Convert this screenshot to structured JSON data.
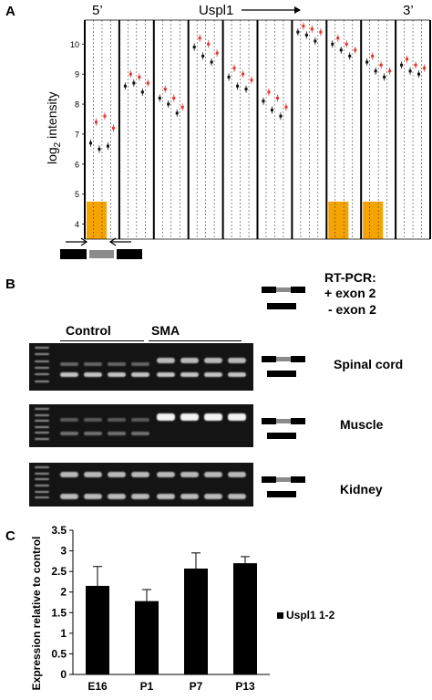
{
  "figure": {
    "panel_a_letter": "A",
    "panel_b_letter": "B",
    "panel_c_letter": "C"
  },
  "panel_a": {
    "five_prime": "5’",
    "three_prime": "3’",
    "gene": "Uspl1",
    "ylabel_main": "log",
    "ylabel_sub": "2",
    "ylabel_rest": " intensity",
    "yticks": [
      "10",
      "9",
      "8",
      "7",
      "6",
      "5",
      "4"
    ],
    "ylim": [
      3.5,
      10.8
    ],
    "colors": {
      "control": "#111111",
      "sma": "#e8332a",
      "highlight": "#f5a300"
    },
    "exons": [
      {
        "highlight": true,
        "pairs": [
          [
            6.7,
            7.4
          ],
          [
            6.5,
            7.6
          ],
          [
            6.6,
            7.2
          ]
        ]
      },
      {
        "highlight": false,
        "pairs": [
          [
            8.6,
            9.0
          ],
          [
            8.7,
            8.9
          ],
          [
            8.4,
            8.7
          ]
        ]
      },
      {
        "highlight": false,
        "pairs": [
          [
            8.2,
            8.5
          ],
          [
            8.0,
            8.2
          ],
          [
            7.7,
            7.9
          ]
        ]
      },
      {
        "highlight": false,
        "pairs": [
          [
            9.9,
            10.2
          ],
          [
            9.6,
            10.0
          ],
          [
            9.4,
            9.7
          ]
        ]
      },
      {
        "highlight": false,
        "pairs": [
          [
            8.9,
            9.2
          ],
          [
            8.6,
            9.0
          ],
          [
            8.5,
            8.8
          ]
        ]
      },
      {
        "highlight": false,
        "pairs": [
          [
            8.1,
            8.4
          ],
          [
            7.8,
            8.2
          ],
          [
            7.6,
            7.9
          ]
        ]
      },
      {
        "highlight": false,
        "pairs": [
          [
            10.4,
            10.6
          ],
          [
            10.3,
            10.5
          ],
          [
            10.1,
            10.4
          ]
        ]
      },
      {
        "highlight": true,
        "pairs": [
          [
            10.0,
            10.2
          ],
          [
            9.8,
            10.0
          ],
          [
            9.6,
            9.8
          ]
        ]
      },
      {
        "highlight": true,
        "pairs": [
          [
            9.4,
            9.6
          ],
          [
            9.1,
            9.3
          ],
          [
            8.9,
            9.1
          ]
        ]
      },
      {
        "highlight": false,
        "pairs": [
          [
            9.3,
            9.5
          ],
          [
            9.1,
            9.3
          ],
          [
            9.0,
            9.2
          ]
        ]
      }
    ]
  },
  "panel_b": {
    "rtpcr_title": "RT-PCR:",
    "plus_exon": "+ exon 2",
    "minus_exon": "- exon 2",
    "group_control": "Control",
    "group_sma": "SMA",
    "tissues": [
      "Spinal cord",
      "Muscle",
      "Kidney"
    ]
  },
  "panel_c": {
    "chart_data": {
      "type": "bar",
      "categories": [
        "E16",
        "P1",
        "P7",
        "P13"
      ],
      "series": [
        {
          "name": "Uspl1 1-2",
          "values": [
            2.15,
            1.78,
            2.57,
            2.7
          ],
          "errors": [
            0.47,
            0.28,
            0.38,
            0.16
          ]
        }
      ],
      "ylabel": "Expression relative to control",
      "xlabel": "",
      "ylim": [
        0,
        3.5
      ],
      "yticks": [
        "0",
        "0.5",
        "1",
        "1.5",
        "2",
        "2.5",
        "3",
        "3.5"
      ],
      "grid": false,
      "legend": "right",
      "bar_color": "#000000"
    }
  }
}
